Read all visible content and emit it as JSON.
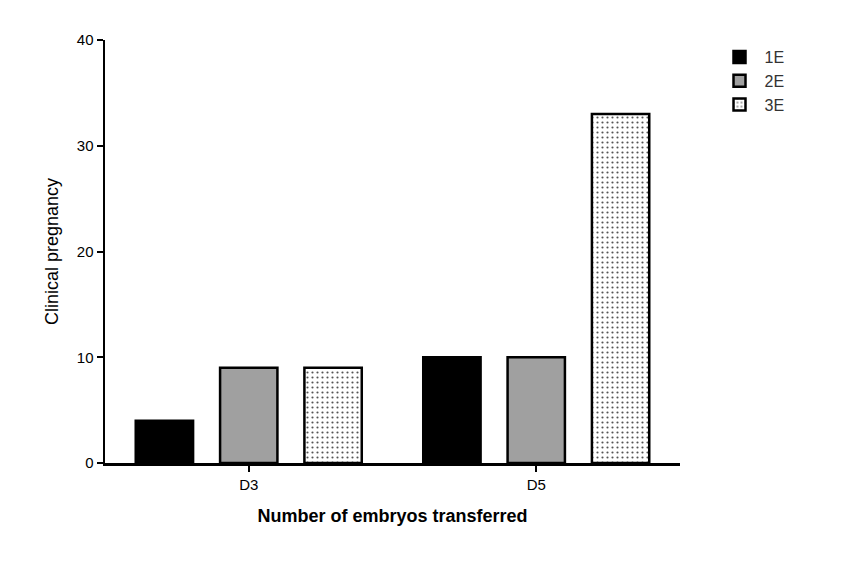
{
  "chart_data": {
    "type": "bar",
    "categories": [
      "D3",
      "D5"
    ],
    "series": [
      {
        "name": "1E",
        "color": "#000000",
        "values": [
          4,
          10
        ]
      },
      {
        "name": "2E",
        "color": "#a0a0a0",
        "values": [
          9,
          10
        ]
      },
      {
        "name": "3E",
        "color": "#ffffff",
        "marker": "dots",
        "values": [
          9,
          33
        ]
      }
    ],
    "x_label": "Number of embryos transferred",
    "y_label": "Clinical pregnancy",
    "ylim": [
      0,
      40
    ],
    "yticks": [
      0,
      10,
      20,
      30,
      40
    ],
    "grid": false,
    "legend": "upper right"
  }
}
